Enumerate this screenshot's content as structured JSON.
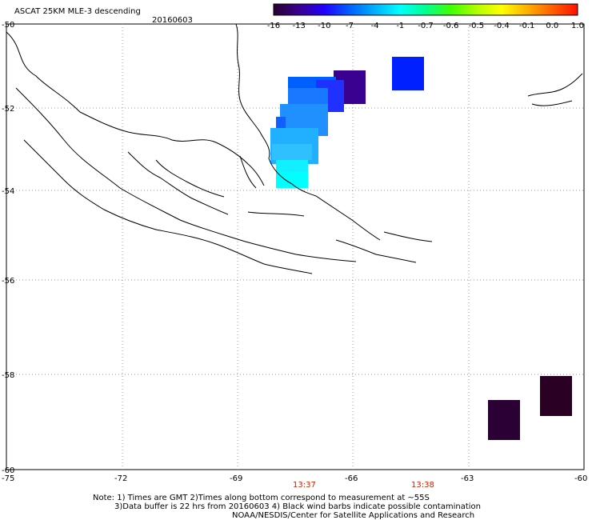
{
  "header": {
    "title": "ASCAT 25KM MLE-3 descending",
    "date": "20160603"
  },
  "colorbar": {
    "labels": [
      "-16",
      "-13",
      "-10",
      "-7",
      "-4",
      "-1",
      "-0.7",
      "-0.6",
      "-0.5",
      "-0.4",
      "-0.1",
      "0.0",
      "1.0"
    ],
    "colors": [
      "#2a0030",
      "#3a0090",
      "#2000ff",
      "#0060ff",
      "#00b0ff",
      "#00ffff",
      "#00ff90",
      "#40ff00",
      "#b0ff00",
      "#ffff00",
      "#ffb000",
      "#ff6000",
      "#ff1000"
    ]
  },
  "axes": {
    "lon_ticks": [
      "-75",
      "-72",
      "-69",
      "-66",
      "-63",
      "-60"
    ],
    "lat_ticks": [
      "-50",
      "-52",
      "-54",
      "-56",
      "-58",
      "-60"
    ],
    "times": [
      "13:37",
      "13:38"
    ]
  },
  "notes": {
    "line1": "Note: 1) Times are GMT 2)Times along bottom correspond to measurement at ~55S",
    "line2": "3)Data buffer is 22 hrs from 20160603 4) Black wind barbs indicate possible contamination",
    "line3": "NOAA/NESDIS/Center for Satellite Applications and Research"
  },
  "colors": {
    "grid": "#9a9a9a",
    "coast": "#000000",
    "time_label": "#cc2200"
  }
}
